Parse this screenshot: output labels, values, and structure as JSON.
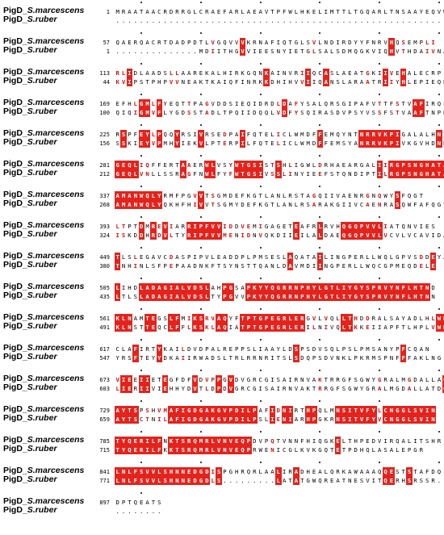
{
  "seq_a_prefix": "PigD_",
  "seq_a_species": "S.marcescens",
  "seq_b_prefix": "PigD_",
  "seq_b_species": "S.ruber",
  "colors": {
    "identical_bg": "#e3231c",
    "similar_text": "#cc1010"
  },
  "blocks": [
    {
      "start_a": "1",
      "seq_a": "MRAATAACRDRRGLCRAEFARLAEAVTPFWLHKELIMTTLTGQARLTNSAAYEQVW",
      "start_b": "",
      "seq_b": "........................................................"
    },
    {
      "start_a": "57",
      "seq_a": "QAERQACRTDADPDTLVGQVVVKRNAFIQTGLSVLNDIRDYYFNRVHQSEMPLI",
      "start_b": "1",
      "seq_b": "..............MDIITHGVVIEESNYIETGLSALSDMQGKVIQHVTHDAIVNA"
    },
    {
      "start_a": "113",
      "seq_a": "RLIDLAADSLLAAREKALHIRKGQNKAINVRIIQCASLAEATGKIIVEHALECRP",
      "start_b": "44",
      "seq_b": "KVIPSTPHPVVNEAKTKAIQFINRKKDHIHVVIIQANSLARAATRIIYHLEPIEQNS"
    },
    {
      "start_a": "169",
      "seq_a": "EFHLGMLFYEQTTPAGVDDSIEQIDRDLDAFYSALQRSGIPAFVTTFSTVAFIRQL",
      "start_b": "100",
      "seq_b": "QIQIGMVFLYGDSSTADLTPQIIDQQLVDFYSQIRASDVPSYVSSFSTVAAFTNPN"
    },
    {
      "start_a": "225",
      "seq_a": "RSPFEYLPQQYRSIVRSEDPAIFQTELICLWMDFFEMQYNTNRRVKPIGALALHNTL",
      "start_b": "156",
      "seq_b": "SSKIEYVPMHYIEKVLPTERPILFQTELICLWMDFFEMSYANRRVKPIVKGVHDNRL"
    },
    {
      "start_a": "281",
      "seq_a": "GEQLIQFFERTAAERWLVSYWTGSISTSHLIGWLDRHAEARGALIIRGPSNGHATACG",
      "start_b": "212",
      "seq_b": "GEQLVNLLSSRAGFNWLFYFWTGSIVSSLINYIEEFSTQNDIPTILRGPSNGHATACG"
    },
    {
      "start_a": "337",
      "seq_a": "AMANWQLYRMFPGVVTSGMDEFKGTLANLRSTAGQIIVAENRGNQWYSFQGT",
      "start_b": "268",
      "seq_b": "AMANWQLYQKHFHIVVTSGMYDEFKGTLANLRSARAKGIIVCAENRASQWFAFQGT"
    },
    {
      "start_a": "393",
      "seq_a": "LTPTDMREVIARRIPFVVIDDVEMIGAGETEAFRLRVHQGQPVVLIATQNVIES",
      "start_b": "324",
      "seq_b": "ISKDDHRDVLTYRIPFVVMENIDNVQKDIIEILALDAEQGQPVVLVCVLVCAVIDA"
    },
    {
      "start_a": "449",
      "seq_a": "TLSLEGAVCDASPIPVLEADDPLPMSESLAQATAILINGPERLLWQLGPVSDDEYA",
      "start_b": "380",
      "seq_b": "TNHINLSFPEPAADNKFTSYNSTTQANLDAVMDIINGPERLLWQCGPMEQDELE"
    },
    {
      "start_a": "505",
      "seq_a": "LIHDLADAGIALVDSLAHPGSAPKYYQGRRNPHYLGTLIYGYSPRVYNFLHTND",
      "start_b": "435",
      "seq_b": "LTLSLADAGIALVDSLTYPGVVPKYYQGRRNPHYLGTLIYGYSPRVYNFLHTNN"
    },
    {
      "start_a": "561",
      "seq_a": "KLNAMTEGSLFMIKSRVAQYFTPTGPEGRLERGVLVQLLTHDDRALSAYADLHLWMN",
      "start_b": "491",
      "seq_b": "KLNSTTEQCLFFLKSKLAQIATPTGPEGRLERILNIVQLTKKEIIAPFTLHPLVWMN"
    },
    {
      "start_a": "617",
      "seq_a": "CLAFIRTYKAILDVDPALREPPSLIAAYLDSPSDVSQLPSLPMSANYPFCQAN",
      "start_b": "547",
      "seq_b": "YRSFTEYYDKAIIRWADSLTRLRRNRITSLSDQPSDVNKLPKRMSPNFFFAKLNG"
    },
    {
      "start_a": "673",
      "seq_a": "VIEEIIETEGFDFVDVPPGVDVGRCGISAIRNVAKTRRGFSGWYGRALMGDALLAGY",
      "start_b": "603",
      "seq_b": "LIERIIVIEHHYDVTLDPDVGRCGISAIRNVAKTRRGFSGWYGRALMGDALLATDGIV"
    },
    {
      "start_a": "729",
      "seq_a": "AYTSPSHVMAFIGDGAKGVPDILPAFIDNIRTHPQLMNSITVFYLCNGGLSVIN",
      "start_b": "659",
      "seq_b": "AYTSCTNILAFIGDGAKGVPDILPSLIENIARHPGKRNSITVFYVCNGGLSVIN"
    },
    {
      "start_a": "785",
      "seq_a": "TYQERILFNKTSRQMRLVNVEQPDVPQTVNNFHIQGKELTHPEDVIRQALITSHR",
      "start_b": "715",
      "seq_b": "TYQERILFKKTSRQMRLVNVEQPRWENICGLKVKGQTETPDHQLASALEPGR"
    },
    {
      "start_a": "841",
      "seq_a": "LNLFSVVLSHNNEDGDISPGHRQRLAALIRADHEALQRKAWAAAQQESTSTAFDQ",
      "start_b": "771",
      "seq_b": "LNLFSVVLSHNNEDGDLS.........LATATGWQREATNESVITQERHSRSSR..."
    },
    {
      "start_a": "897",
      "seq_a": "DPTQEATS",
      "start_b": "",
      "seq_b": "........"
    }
  ]
}
